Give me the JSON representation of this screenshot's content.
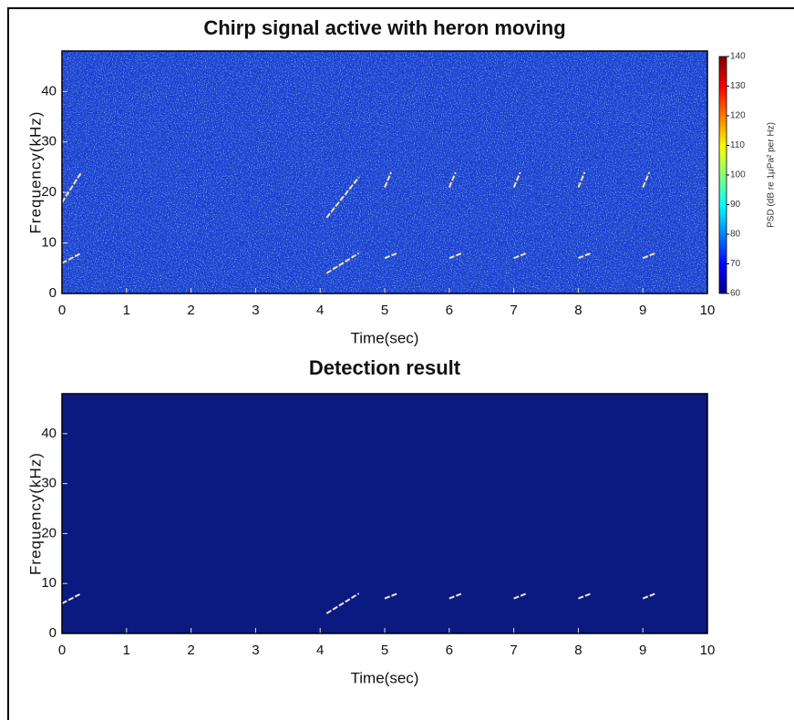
{
  "chart_data": [
    {
      "type": "spectrogram",
      "title": "Chirp signal active with heron moving",
      "x_label": "Time(sec)",
      "y_label": "Frequency(kHz)",
      "xlim": [
        0,
        10
      ],
      "xticks": [
        0,
        1,
        2,
        3,
        4,
        5,
        6,
        7,
        8,
        9,
        10
      ],
      "ylim": [
        0,
        48
      ],
      "yticks": [
        0,
        10,
        20,
        30,
        40
      ],
      "background": "#1c3fd0",
      "noise": true,
      "segments": [
        {
          "x": [
            0,
            0.3
          ],
          "y": [
            6,
            8
          ]
        },
        {
          "x": [
            4.1,
            4.6
          ],
          "y": [
            4,
            8
          ]
        },
        {
          "x": [
            5,
            5.2
          ],
          "y": [
            7,
            8
          ]
        },
        {
          "x": [
            6,
            6.2
          ],
          "y": [
            7,
            8
          ]
        },
        {
          "x": [
            7,
            7.2
          ],
          "y": [
            7,
            8
          ]
        },
        {
          "x": [
            8,
            8.2
          ],
          "y": [
            7,
            8
          ]
        },
        {
          "x": [
            9,
            9.2
          ],
          "y": [
            7,
            8
          ]
        },
        {
          "x": [
            0,
            0.3
          ],
          "y": [
            18,
            24
          ]
        },
        {
          "x": [
            4.1,
            4.6
          ],
          "y": [
            15,
            23
          ]
        },
        {
          "x": [
            5,
            5.1
          ],
          "y": [
            21,
            24
          ]
        },
        {
          "x": [
            6,
            6.1
          ],
          "y": [
            21,
            24
          ]
        },
        {
          "x": [
            7,
            7.1
          ],
          "y": [
            21,
            24
          ]
        },
        {
          "x": [
            8,
            8.1
          ],
          "y": [
            21,
            24
          ]
        },
        {
          "x": [
            9,
            9.1
          ],
          "y": [
            21,
            24
          ]
        }
      ],
      "segment_color": "#f0e6a0",
      "colorbar": {
        "label": "PSD (dB re 1μPa² per Hz)",
        "lim": [
          60,
          140
        ],
        "ticks": [
          60,
          70,
          80,
          90,
          100,
          110,
          120,
          130,
          140
        ],
        "colormap": "jet"
      }
    },
    {
      "type": "spectrogram",
      "title": "Detection result",
      "x_label": "Time(sec)",
      "y_label": "Frequency(kHz)",
      "xlim": [
        0,
        10
      ],
      "xticks": [
        0,
        1,
        2,
        3,
        4,
        5,
        6,
        7,
        8,
        9,
        10
      ],
      "ylim": [
        0,
        48
      ],
      "yticks": [
        0,
        10,
        20,
        30,
        40
      ],
      "background": "#0a1a80",
      "noise": false,
      "segments": [
        {
          "x": [
            0,
            0.3
          ],
          "y": [
            6,
            8
          ]
        },
        {
          "x": [
            4.1,
            4.6
          ],
          "y": [
            4,
            8
          ]
        },
        {
          "x": [
            5,
            5.2
          ],
          "y": [
            7,
            8
          ]
        },
        {
          "x": [
            6,
            6.2
          ],
          "y": [
            7,
            8
          ]
        },
        {
          "x": [
            7,
            7.2
          ],
          "y": [
            7,
            8
          ]
        },
        {
          "x": [
            8,
            8.2
          ],
          "y": [
            7,
            8
          ]
        },
        {
          "x": [
            9,
            9.2
          ],
          "y": [
            7,
            8
          ]
        }
      ],
      "segment_color": "#e8e8e8"
    }
  ]
}
